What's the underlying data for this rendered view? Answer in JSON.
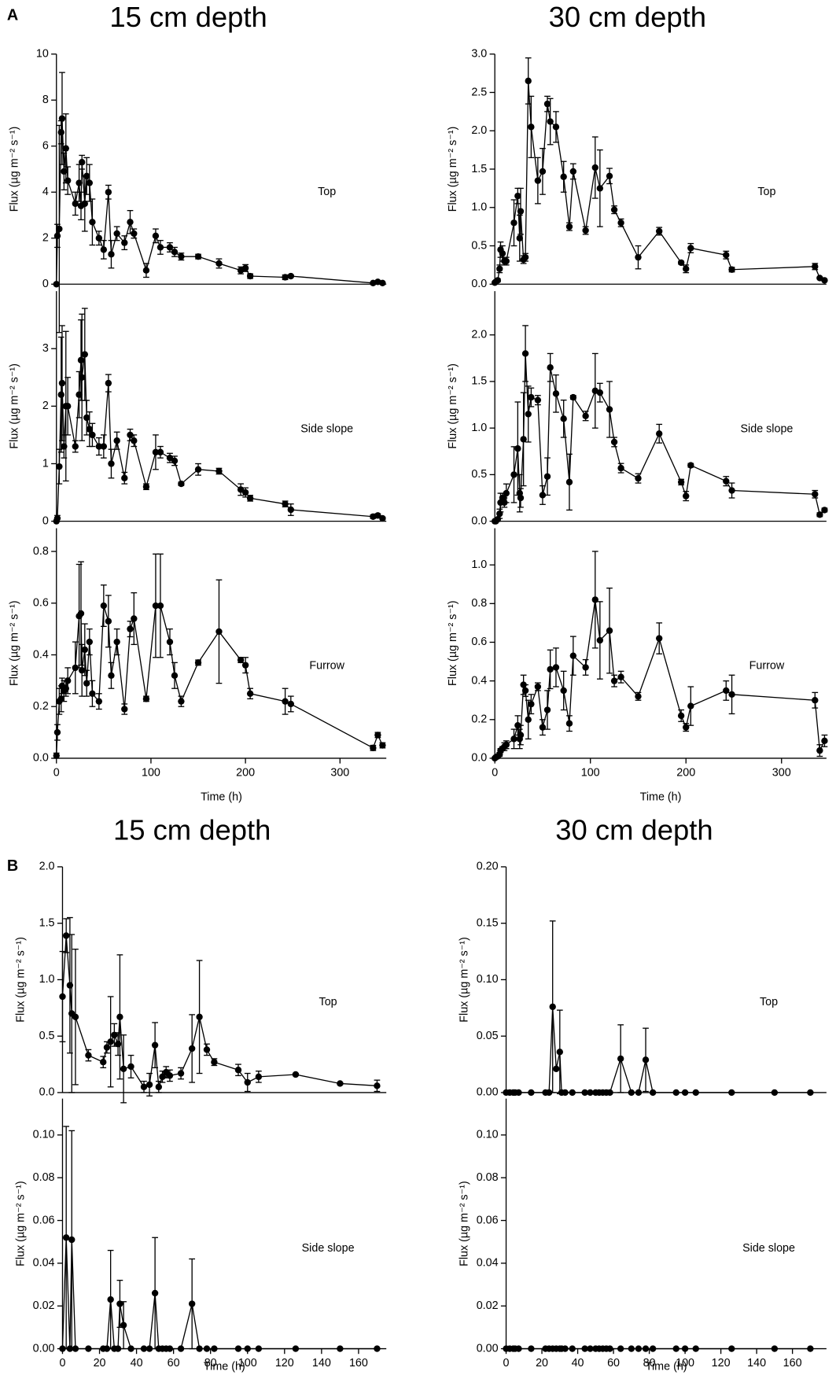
{
  "chart_data": [
    {
      "type": "line",
      "panel_label": "A",
      "title": "15 cm depth",
      "annotation": "Top",
      "y_label": "Flux (µg m⁻² s⁻¹)",
      "color": "#000000",
      "x": [
        0,
        1,
        3,
        5,
        6,
        8,
        10,
        12,
        20,
        24,
        26,
        27,
        30,
        32,
        35,
        38,
        45,
        50,
        55,
        58,
        64,
        72,
        78,
        82,
        95,
        105,
        110,
        120,
        125,
        132,
        150,
        172,
        195,
        200,
        205,
        242,
        248,
        335,
        340,
        345
      ],
      "values": [
        0,
        2.1,
        2.4,
        6.6,
        7.2,
        4.9,
        5.9,
        4.5,
        3.5,
        4.4,
        3.4,
        5.3,
        3.5,
        4.7,
        4.4,
        2.7,
        2.0,
        1.5,
        4.0,
        1.3,
        2.2,
        1.8,
        2.7,
        2.2,
        0.6,
        2.1,
        1.6,
        1.6,
        1.4,
        1.2,
        1.2,
        0.9,
        0.6,
        0.7,
        0.35,
        0.3,
        0.35,
        0.05,
        0.1,
        0.05
      ],
      "errors": [
        0,
        0.5,
        4.5,
        0.5,
        2,
        0.8,
        1.5,
        0.6,
        0.5,
        0.8,
        0.6,
        0.3,
        1.2,
        0.8,
        0.8,
        1,
        0.3,
        0.4,
        0.3,
        0.6,
        0.3,
        0.3,
        0.5,
        0.2,
        0.3,
        0.3,
        0.3,
        0.2,
        0.2,
        0.15,
        0.1,
        0.2,
        0.15,
        0.15,
        0.1,
        0.1,
        0.05,
        0.03,
        0.05,
        0.03
      ],
      "xlim": [
        0,
        349
      ],
      "ylim": [
        0,
        10
      ],
      "yticks": [
        0,
        2,
        4,
        6,
        8,
        10
      ]
    },
    {
      "type": "line",
      "annotation": "Side slope",
      "y_label": "Flux (µg m⁻² s⁻¹)",
      "color": "#000000",
      "x": [
        0,
        1,
        3,
        5,
        6,
        8,
        10,
        12,
        20,
        24,
        26,
        27,
        30,
        32,
        35,
        38,
        45,
        50,
        55,
        58,
        64,
        72,
        78,
        82,
        95,
        105,
        110,
        120,
        125,
        132,
        150,
        172,
        195,
        200,
        205,
        242,
        248,
        335,
        340,
        345
      ],
      "values": [
        0,
        0.05,
        0.95,
        2.2,
        2.4,
        1.3,
        2.0,
        2.0,
        1.3,
        2.2,
        2.8,
        2.5,
        2.9,
        1.8,
        1.6,
        1.5,
        1.3,
        1.3,
        2.4,
        1.0,
        1.4,
        0.75,
        1.5,
        1.4,
        0.6,
        1.2,
        1.2,
        1.1,
        1.05,
        0.65,
        0.9,
        0.87,
        0.55,
        0.5,
        0.4,
        0.3,
        0.2,
        0.08,
        0.1,
        0.05
      ],
      "errors": [
        0,
        0.05,
        0.3,
        1,
        1,
        0.2,
        1.3,
        0.5,
        0.1,
        0.4,
        0.7,
        1.1,
        0.8,
        0.3,
        0.3,
        0.2,
        0.15,
        0.2,
        0.15,
        0.25,
        0.15,
        0.1,
        0.1,
        0.1,
        0.05,
        0.3,
        0.1,
        0.08,
        0.08,
        0.03,
        0.1,
        0.05,
        0.1,
        0.08,
        0.05,
        0.05,
        0.1,
        0.03,
        0.03,
        0.02
      ],
      "xlim": [
        0,
        349
      ],
      "ylim": [
        0,
        4
      ],
      "yticks": [
        0,
        1,
        2,
        3
      ]
    },
    {
      "type": "line",
      "annotation": "Furrow",
      "y_label": "Flux (µg m⁻² s⁻¹)",
      "x_label": "Time (h)",
      "color": "#000000",
      "x": [
        0,
        1,
        3,
        5,
        6,
        8,
        10,
        12,
        20,
        24,
        26,
        27,
        30,
        32,
        35,
        38,
        45,
        50,
        55,
        58,
        64,
        72,
        78,
        82,
        95,
        105,
        110,
        120,
        125,
        132,
        150,
        172,
        195,
        200,
        205,
        242,
        248,
        335,
        340,
        345
      ],
      "values": [
        0.01,
        0.1,
        0.22,
        0.23,
        0.28,
        0.26,
        0.27,
        0.3,
        0.35,
        0.55,
        0.56,
        0.34,
        0.42,
        0.29,
        0.45,
        0.25,
        0.22,
        0.59,
        0.53,
        0.32,
        0.45,
        0.19,
        0.5,
        0.54,
        0.23,
        0.59,
        0.59,
        0.45,
        0.32,
        0.22,
        0.37,
        0.49,
        0.38,
        0.36,
        0.25,
        0.22,
        0.21,
        0.04,
        0.09,
        0.05
      ],
      "errors": [
        0.01,
        0.03,
        0.05,
        0.05,
        0.03,
        0.04,
        0.03,
        0.05,
        0.1,
        0.2,
        0.2,
        0.1,
        0.1,
        0.05,
        0.05,
        0.05,
        0.03,
        0.08,
        0.1,
        0.05,
        0.05,
        0.02,
        0.03,
        0.1,
        0.01,
        0.2,
        0.2,
        0.05,
        0.05,
        0.02,
        0.01,
        0.2,
        0.01,
        0.03,
        0.02,
        0.05,
        0.03,
        0.01,
        0.01,
        0.01
      ],
      "xlim": [
        0,
        349
      ],
      "ylim": [
        0,
        0.89
      ],
      "yticks": [
        {
          "value": 0,
          "label": "0.0"
        },
        0.2,
        0.4,
        0.6,
        0.8
      ],
      "xticks": [
        0,
        100,
        200,
        300
      ]
    },
    {
      "type": "line",
      "title": "30 cm depth",
      "annotation": "Top",
      "y_label": "Flux (µg m⁻² s⁻¹)",
      "color": "#000000",
      "x": [
        0,
        1,
        3,
        5,
        6,
        8,
        10,
        12,
        20,
        24,
        26,
        27,
        30,
        32,
        35,
        38,
        45,
        50,
        55,
        58,
        64,
        72,
        78,
        82,
        95,
        105,
        110,
        120,
        125,
        132,
        150,
        172,
        195,
        200,
        205,
        242,
        248,
        335,
        340,
        345
      ],
      "values": [
        0.02,
        0.03,
        0.05,
        0.2,
        0.45,
        0.4,
        0.3,
        0.3,
        0.8,
        1.15,
        0.6,
        0.95,
        0.32,
        0.35,
        2.65,
        2.05,
        1.35,
        1.47,
        2.35,
        2.12,
        2.05,
        1.4,
        0.75,
        1.47,
        0.7,
        1.52,
        1.25,
        1.41,
        0.97,
        0.8,
        0.35,
        0.69,
        0.28,
        0.2,
        0.47,
        0.38,
        0.19,
        0.23,
        0.08,
        0.05
      ],
      "errors": [
        0.01,
        0.01,
        0.02,
        0.05,
        0.1,
        0.1,
        0.05,
        0.05,
        0.3,
        0.1,
        0.3,
        0.3,
        0.05,
        0.05,
        0.3,
        0.4,
        0.3,
        0.3,
        0.1,
        0.3,
        0.2,
        0.2,
        0.05,
        0.1,
        0.05,
        0.4,
        0.5,
        0.1,
        0.05,
        0.05,
        0.15,
        0.05,
        0.02,
        0.05,
        0.06,
        0.05,
        0.03,
        0.04,
        0.01,
        0.01
      ],
      "xlim": [
        0,
        347
      ],
      "ylim": [
        0,
        3
      ],
      "yticks": [
        {
          "value": 0,
          "label": "0.0"
        },
        0.5,
        {
          "value": 1,
          "label": "1.0"
        },
        1.5,
        {
          "value": 2,
          "label": "2.0"
        },
        2.5,
        {
          "value": 3,
          "label": "3.0"
        }
      ]
    },
    {
      "type": "line",
      "annotation": "Side slope",
      "y_label": "Flux (µg m⁻² s⁻¹)",
      "color": "#000000",
      "x": [
        0,
        1,
        3,
        5,
        6,
        8,
        10,
        12,
        20,
        24,
        26,
        27,
        30,
        32,
        35,
        38,
        45,
        50,
        55,
        58,
        64,
        72,
        78,
        82,
        95,
        105,
        110,
        120,
        125,
        132,
        150,
        172,
        195,
        200,
        205,
        242,
        248,
        335,
        340,
        345
      ],
      "values": [
        0,
        0,
        0.02,
        0.08,
        0.2,
        0.25,
        0.2,
        0.3,
        0.5,
        0.78,
        0.3,
        0.25,
        0.88,
        1.8,
        1.15,
        1.33,
        1.3,
        0.28,
        0.48,
        1.65,
        1.37,
        1.1,
        0.42,
        1.33,
        1.13,
        1.4,
        1.38,
        1.2,
        0.85,
        0.57,
        0.46,
        0.94,
        0.42,
        0.27,
        0.6,
        0.43,
        0.33,
        0.29,
        0.07,
        0.12
      ],
      "errors": [
        0,
        0,
        0.02,
        0.05,
        0.1,
        0.05,
        0.05,
        0.1,
        0.3,
        0.5,
        0.2,
        0.1,
        0.5,
        0.3,
        0.3,
        0.1,
        0.05,
        0.1,
        0.2,
        0.15,
        0.2,
        0.2,
        0.3,
        0.02,
        0.05,
        0.4,
        0.1,
        0.3,
        0.05,
        0.05,
        0.05,
        0.1,
        0.03,
        0.05,
        0.02,
        0.05,
        0.08,
        0.04,
        0.02,
        0.02
      ],
      "xlim": [
        0,
        347
      ],
      "ylim": [
        0,
        2.47
      ],
      "yticks": [
        {
          "value": 0,
          "label": "0.0"
        },
        0.5,
        {
          "value": 1,
          "label": "1.0"
        },
        1.5,
        {
          "value": 2,
          "label": "2.0"
        }
      ]
    },
    {
      "type": "line",
      "annotation": "Furrow",
      "y_label": "Flux (µg m⁻² s⁻¹)",
      "x_label": "Time (h)",
      "color": "#000000",
      "x": [
        0,
        1,
        3,
        5,
        6,
        8,
        10,
        12,
        20,
        24,
        26,
        27,
        30,
        32,
        35,
        38,
        45,
        50,
        55,
        58,
        64,
        72,
        78,
        82,
        95,
        105,
        110,
        120,
        125,
        132,
        150,
        172,
        195,
        200,
        205,
        242,
        248,
        335,
        340,
        345
      ],
      "values": [
        0,
        0.005,
        0.01,
        0.02,
        0.04,
        0.05,
        0.06,
        0.07,
        0.1,
        0.17,
        0.1,
        0.12,
        0.38,
        0.35,
        0.2,
        0.28,
        0.37,
        0.16,
        0.25,
        0.46,
        0.47,
        0.35,
        0.18,
        0.53,
        0.47,
        0.82,
        0.61,
        0.66,
        0.4,
        0.42,
        0.32,
        0.62,
        0.22,
        0.16,
        0.27,
        0.35,
        0.33,
        0.3,
        0.04,
        0.09
      ],
      "errors": [
        0,
        0,
        0.005,
        0.01,
        0.01,
        0.01,
        0.02,
        0.02,
        0.05,
        0.05,
        0.05,
        0.05,
        0.05,
        0.03,
        0.1,
        0.05,
        0.02,
        0.04,
        0.1,
        0.1,
        0.1,
        0.1,
        0.04,
        0.1,
        0.04,
        0.25,
        0.2,
        0.22,
        0.03,
        0.03,
        0.02,
        0.08,
        0.03,
        0.02,
        0.1,
        0.05,
        0.1,
        0.04,
        0.03,
        0.03
      ],
      "xlim": [
        0,
        347
      ],
      "ylim": [
        0,
        1.19
      ],
      "yticks": [
        {
          "value": 0,
          "label": "0.0"
        },
        0.2,
        0.4,
        0.6,
        0.8,
        {
          "value": 1,
          "label": "1.0"
        }
      ],
      "xticks": [
        0,
        100,
        200,
        300
      ]
    },
    {
      "type": "line",
      "panel_label": "B",
      "title": "15 cm depth",
      "annotation": "Top",
      "y_label": "Flux (µg m⁻² s⁻¹)",
      "color": "#000000",
      "x": [
        0,
        2,
        4,
        5,
        7,
        14,
        22,
        24,
        26,
        28,
        30,
        31,
        33,
        37,
        44,
        47,
        50,
        52,
        54,
        56,
        58,
        64,
        70,
        74,
        78,
        82,
        95,
        100,
        106,
        126,
        150,
        170
      ],
      "values": [
        0.85,
        1.39,
        0.95,
        0.7,
        0.67,
        0.33,
        0.27,
        0.4,
        0.45,
        0.51,
        0.43,
        0.67,
        0.21,
        0.23,
        0.05,
        0.07,
        0.42,
        0.05,
        0.14,
        0.18,
        0.15,
        0.17,
        0.39,
        0.67,
        0.38,
        0.27,
        0.2,
        0.09,
        0.14,
        0.16,
        0.08,
        0.06
      ],
      "errors": [
        0.4,
        0.15,
        0.6,
        0.7,
        0.6,
        0.05,
        0.05,
        0.05,
        0.4,
        0.1,
        0.1,
        0.55,
        0.3,
        0.1,
        0.05,
        0.1,
        0.2,
        0.05,
        0.05,
        0.05,
        0.05,
        0.05,
        0.3,
        0.5,
        0.05,
        0.03,
        0.05,
        0.08,
        0.05,
        0.01,
        0.01,
        0.05
      ],
      "xlim": [
        0,
        175
      ],
      "ylim": [
        0,
        2
      ],
      "yticks": [
        {
          "value": 0,
          "label": "0.0"
        },
        0.5,
        {
          "value": 1,
          "label": "1.0"
        },
        1.5,
        {
          "value": 2,
          "label": "2.0"
        }
      ]
    },
    {
      "type": "line",
      "annotation": "Side slope",
      "y_label": "Flux (µg m⁻² s⁻¹)",
      "x_label": "Time (h)",
      "color": "#000000",
      "x": [
        0,
        2,
        4,
        5,
        7,
        14,
        22,
        24,
        26,
        28,
        30,
        31,
        33,
        37,
        44,
        47,
        50,
        52,
        54,
        56,
        58,
        64,
        70,
        74,
        78,
        82,
        95,
        100,
        106,
        126,
        150,
        170
      ],
      "values": [
        0,
        0.052,
        0,
        0.051,
        0,
        0,
        0,
        0,
        0.023,
        0,
        0,
        0.021,
        0.011,
        0,
        0,
        0,
        0.026,
        0,
        0,
        0,
        0,
        0,
        0.021,
        0,
        0,
        0,
        0,
        0,
        0,
        0,
        0,
        0
      ],
      "errors": [
        0,
        0.052,
        0,
        0.051,
        0,
        0,
        0,
        0,
        0.023,
        0,
        0,
        0.011,
        0.011,
        0,
        0,
        0,
        0.026,
        0,
        0,
        0,
        0,
        0,
        0.021,
        0,
        0,
        0,
        0,
        0,
        0,
        0,
        0,
        0
      ],
      "xlim": [
        0,
        175
      ],
      "ylim": [
        0,
        0.117
      ],
      "yticks": [
        {
          "value": 0,
          "label": "0.00"
        },
        0.02,
        0.04,
        0.06,
        0.08,
        {
          "value": 0.1,
          "label": "0.10"
        }
      ],
      "xticks": [
        0,
        20,
        40,
        60,
        80,
        100,
        120,
        140,
        160
      ]
    },
    {
      "type": "line",
      "title": "30 cm depth",
      "annotation": "Top",
      "y_label": "Flux (µg m⁻² s⁻¹)",
      "color": "#000000",
      "x": [
        0,
        2,
        4,
        5,
        7,
        14,
        22,
        24,
        26,
        28,
        30,
        31,
        33,
        37,
        44,
        47,
        50,
        52,
        54,
        56,
        58,
        64,
        70,
        74,
        78,
        82,
        95,
        100,
        106,
        126,
        150,
        170
      ],
      "values": [
        0,
        0,
        0,
        0,
        0,
        0,
        0,
        0,
        0.076,
        0.021,
        0.036,
        0,
        0,
        0,
        0,
        0,
        0,
        0,
        0,
        0,
        0,
        0.03,
        0,
        0,
        0.029,
        0,
        0,
        0,
        0,
        0,
        0,
        0
      ],
      "errors": [
        0,
        0,
        0,
        0,
        0,
        0,
        0,
        0,
        0.076,
        0,
        0.037,
        0,
        0,
        0,
        0,
        0,
        0,
        0,
        0,
        0,
        0,
        0.03,
        0,
        0,
        0.028,
        0,
        0,
        0,
        0,
        0,
        0,
        0
      ],
      "xlim": [
        0,
        179
      ],
      "ylim": [
        0,
        0.2
      ],
      "yticks": [
        {
          "value": 0,
          "label": "0.00"
        },
        0.05,
        {
          "value": 0.1,
          "label": "0.10"
        },
        0.15,
        {
          "value": 0.2,
          "label": "0.20"
        }
      ]
    },
    {
      "type": "line",
      "annotation": "Side slope",
      "y_label": "Flux (µg m⁻² s⁻¹)",
      "x_label": "Time (h)",
      "color": "#000000",
      "x": [
        0,
        2,
        4,
        5,
        7,
        14,
        22,
        24,
        26,
        28,
        30,
        31,
        33,
        37,
        44,
        47,
        50,
        52,
        54,
        56,
        58,
        64,
        70,
        74,
        78,
        82,
        95,
        100,
        106,
        126,
        150,
        170
      ],
      "values": [
        0,
        0,
        0,
        0,
        0,
        0,
        0,
        0,
        0,
        0,
        0,
        0,
        0,
        0,
        0,
        0,
        0,
        0,
        0,
        0,
        0,
        0,
        0,
        0,
        0,
        0,
        0,
        0,
        0,
        0,
        0,
        0
      ],
      "errors": [
        0,
        0,
        0,
        0,
        0,
        0,
        0,
        0,
        0,
        0,
        0,
        0,
        0,
        0,
        0,
        0,
        0,
        0,
        0,
        0,
        0,
        0,
        0,
        0,
        0,
        0,
        0,
        0,
        0,
        0,
        0,
        0
      ],
      "xlim": [
        0,
        179
      ],
      "ylim": [
        0,
        0.117
      ],
      "yticks": [
        {
          "value": 0,
          "label": "0.00"
        },
        0.02,
        0.04,
        0.06,
        0.08,
        {
          "value": 0.1,
          "label": "0.10"
        }
      ],
      "xticks": [
        0,
        20,
        40,
        60,
        80,
        100,
        120,
        140,
        160
      ]
    }
  ]
}
